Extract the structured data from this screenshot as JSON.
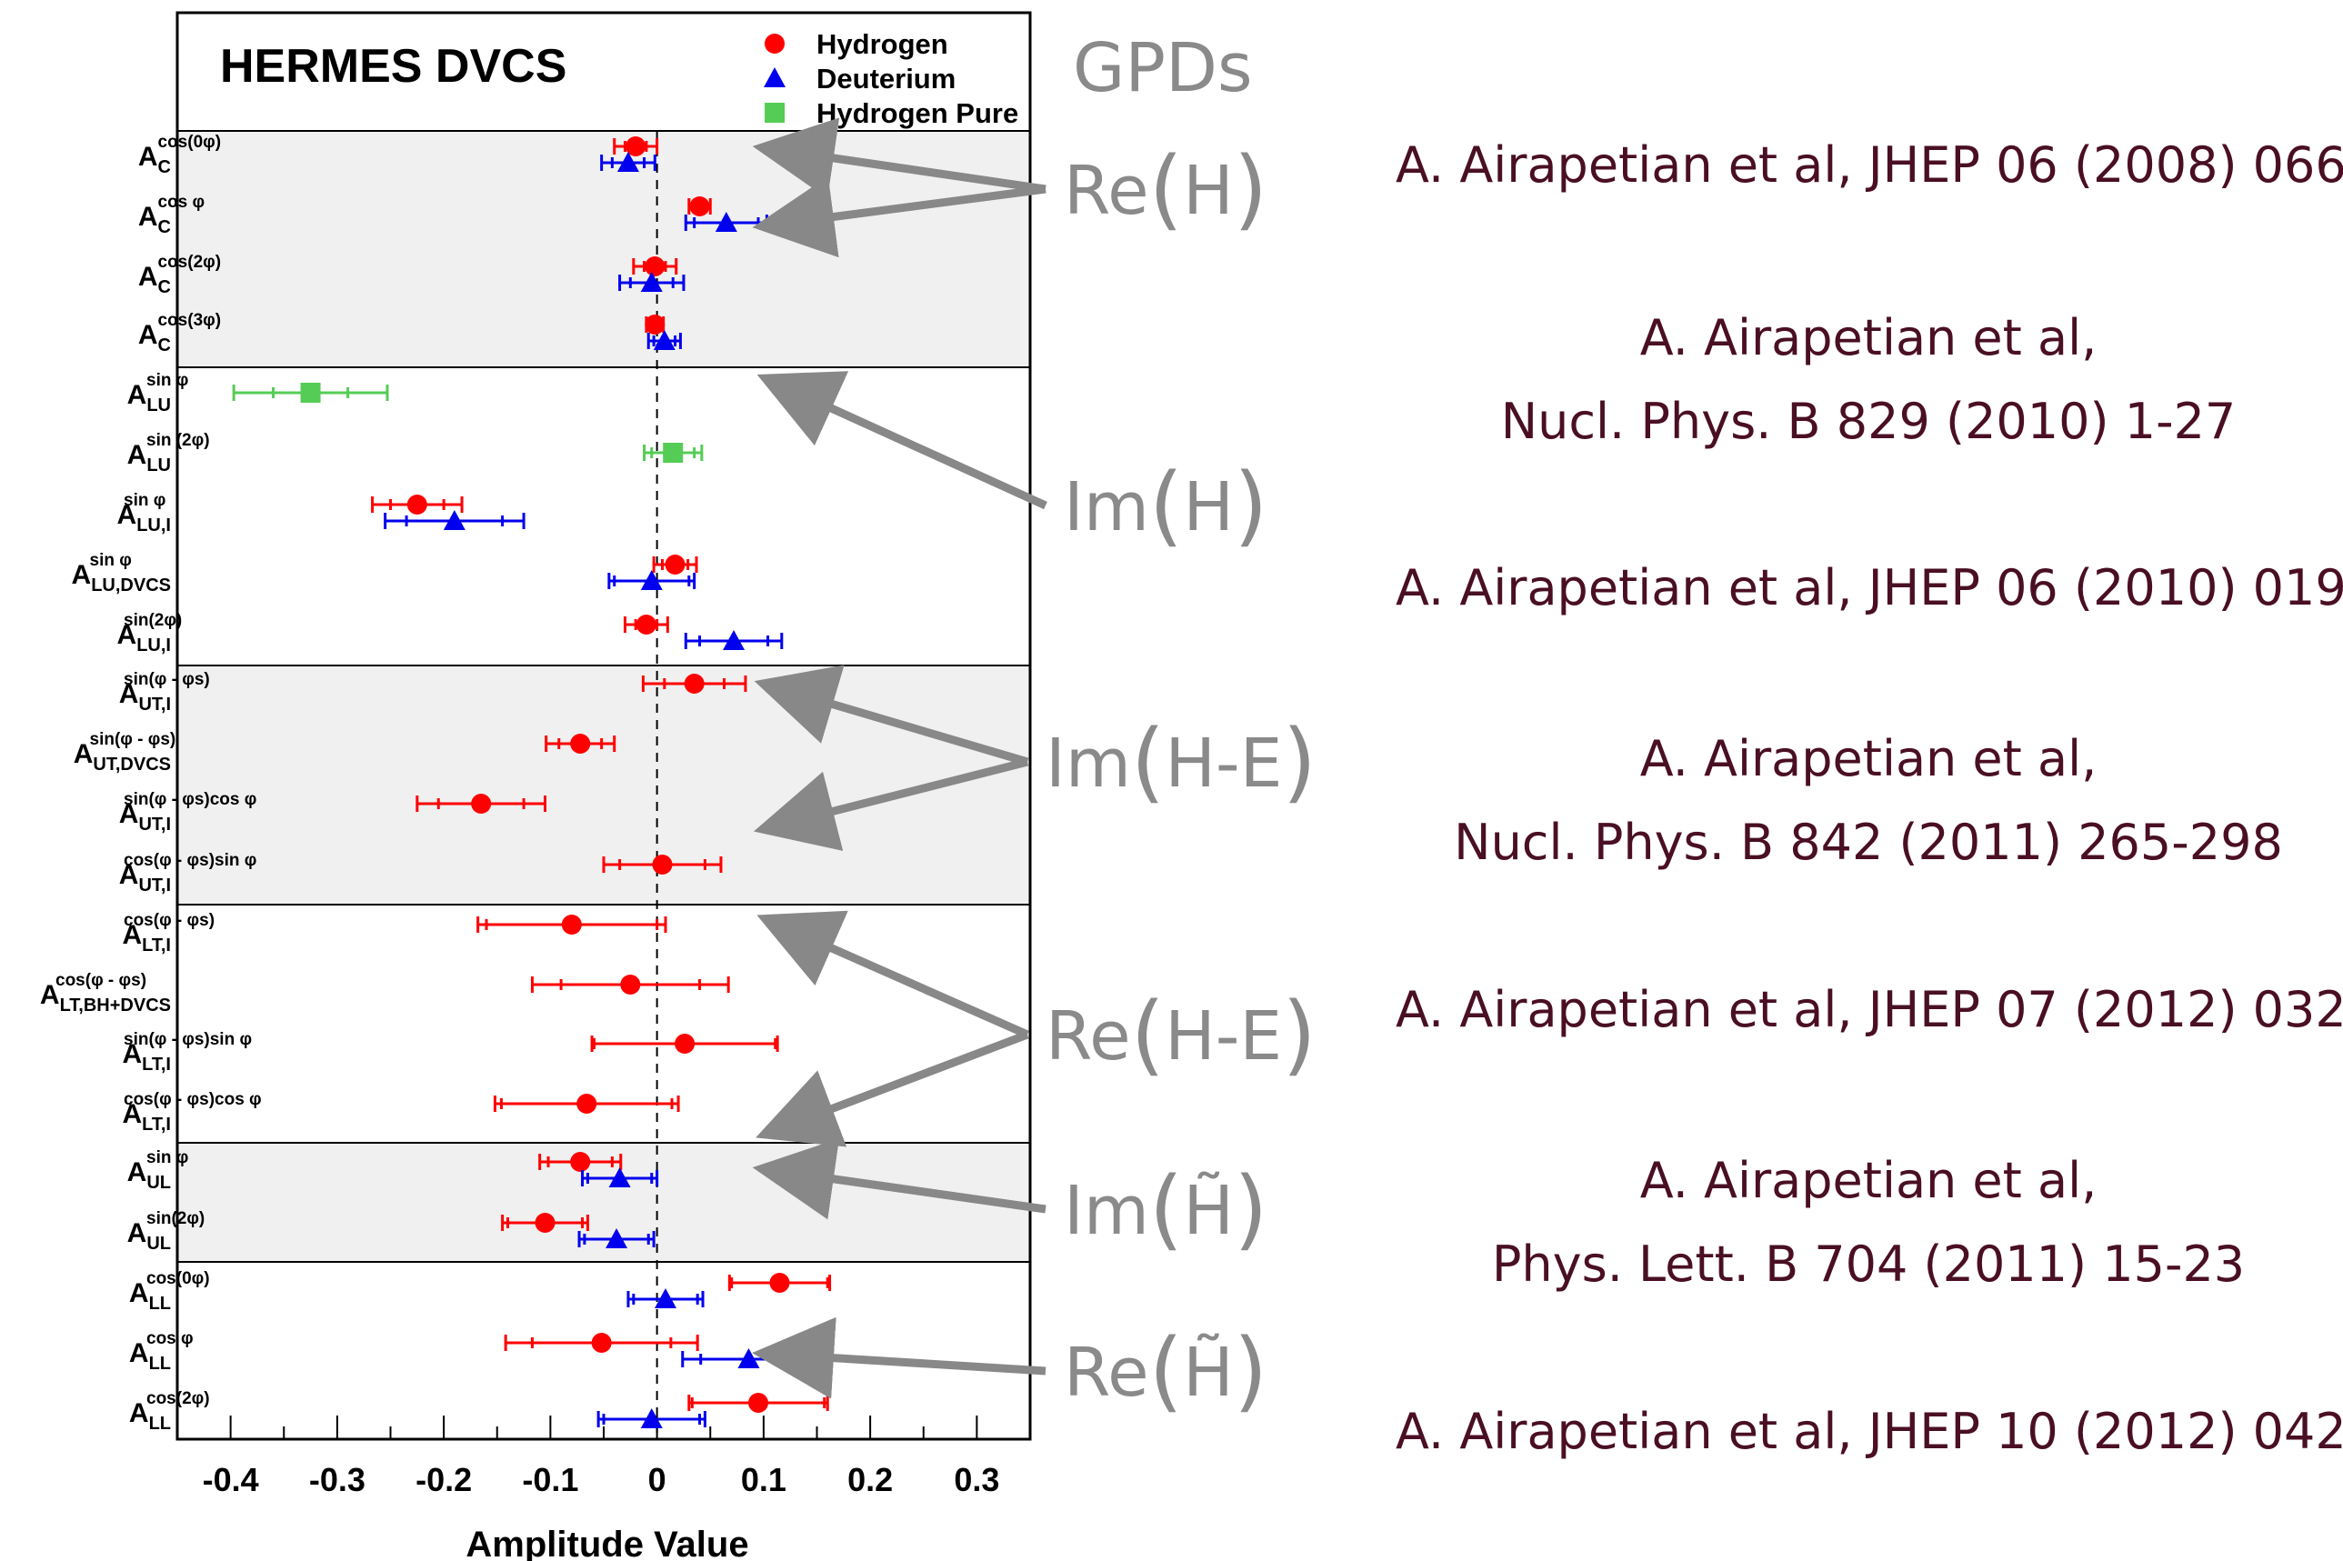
{
  "chart_data": {
    "type": "scatter",
    "title": "HERMES DVCS",
    "xlabel": "Amplitude Value",
    "xlim": [
      -0.45,
      0.35
    ],
    "xticks": [
      "-0.4",
      "-0.3",
      "-0.2",
      "-0.1",
      "0",
      "0.1",
      "0.2",
      "0.3"
    ],
    "legend": {
      "position": "top-right",
      "entries": [
        {
          "name": "Hydrogen",
          "color": "#ff0000",
          "marker": "circle"
        },
        {
          "name": "Deuterium",
          "color": "#0000ee",
          "marker": "triangle"
        },
        {
          "name": "Hydrogen Pure",
          "color": "#55cc55",
          "marker": "square"
        }
      ]
    },
    "rows": [
      {
        "base": "A",
        "sub": "C",
        "sup": "cos(0φ)"
      },
      {
        "base": "A",
        "sub": "C",
        "sup": "cos φ"
      },
      {
        "base": "A",
        "sub": "C",
        "sup": "cos(2φ)"
      },
      {
        "base": "A",
        "sub": "C",
        "sup": "cos(3φ)"
      },
      {
        "base": "A",
        "sub": "LU",
        "sup": "sin φ"
      },
      {
        "base": "A",
        "sub": "LU",
        "sup": "sin (2φ)"
      },
      {
        "base": "A",
        "sub": "LU,I",
        "sup": "sin φ"
      },
      {
        "base": "A",
        "sub": "LU,DVCS",
        "sup": "sin φ"
      },
      {
        "base": "A",
        "sub": "LU,I",
        "sup": "sin(2φ)"
      },
      {
        "base": "A",
        "sub": "UT,I",
        "sup": "sin(φ - φs)"
      },
      {
        "base": "A",
        "sub": "UT,DVCS",
        "sup": "sin(φ - φs)"
      },
      {
        "base": "A",
        "sub": "UT,I",
        "sup": "sin(φ - φs)cos φ"
      },
      {
        "base": "A",
        "sub": "UT,I",
        "sup": "cos(φ - φs)sin φ"
      },
      {
        "base": "A",
        "sub": "LT,I",
        "sup": "cos(φ - φs)"
      },
      {
        "base": "A",
        "sub": "LT,BH+DVCS",
        "sup": "cos(φ - φs)"
      },
      {
        "base": "A",
        "sub": "LT,I",
        "sup": "sin(φ - φs)sin φ"
      },
      {
        "base": "A",
        "sub": "LT,I",
        "sup": "cos(φ - φs)cos φ"
      },
      {
        "base": "A",
        "sub": "UL",
        "sup": "sin φ"
      },
      {
        "base": "A",
        "sub": "UL",
        "sup": "sin(2φ)"
      },
      {
        "base": "A",
        "sub": "LL",
        "sup": "cos(0φ)"
      },
      {
        "base": "A",
        "sub": "LL",
        "sup": "cos φ"
      },
      {
        "base": "A",
        "sub": "LL",
        "sup": "cos(2φ)"
      }
    ],
    "groups": [
      [
        0,
        3
      ],
      [
        4,
        8
      ],
      [
        9,
        12
      ],
      [
        13,
        16
      ],
      [
        17,
        18
      ],
      [
        19,
        21
      ]
    ],
    "shaded_groups": [
      0,
      2,
      4
    ],
    "series": [
      {
        "name": "Hydrogen",
        "color": "#ff0000",
        "marker": "circle",
        "points": [
          {
            "row": 0,
            "y": -0.02,
            "stat": 0.01,
            "tot": 0.02
          },
          {
            "row": 1,
            "y": 0.04,
            "stat": 0.005,
            "tot": 0.01
          },
          {
            "row": 2,
            "y": -0.002,
            "stat": 0.01,
            "tot": 0.02
          },
          {
            "row": 3,
            "y": -0.002,
            "stat": 0.005,
            "tot": 0.008
          },
          {
            "row": 6,
            "y": -0.225,
            "stat": 0.025,
            "tot": 0.042
          },
          {
            "row": 7,
            "y": 0.017,
            "stat": 0.012,
            "tot": 0.02
          },
          {
            "row": 8,
            "y": -0.01,
            "stat": 0.01,
            "tot": 0.02
          },
          {
            "row": 9,
            "y": 0.035,
            "stat": 0.028,
            "tot": 0.048
          },
          {
            "row": 10,
            "y": -0.072,
            "stat": 0.02,
            "tot": 0.032
          },
          {
            "row": 11,
            "y": -0.165,
            "stat": 0.04,
            "tot": 0.06
          },
          {
            "row": 12,
            "y": 0.005,
            "stat": 0.04,
            "tot": 0.055
          },
          {
            "row": 13,
            "y": -0.08,
            "stat": 0.08,
            "tot": 0.088
          },
          {
            "row": 14,
            "y": -0.025,
            "stat": 0.065,
            "tot": 0.092
          },
          {
            "row": 15,
            "y": 0.026,
            "stat": 0.085,
            "tot": 0.087
          },
          {
            "row": 16,
            "y": -0.066,
            "stat": 0.08,
            "tot": 0.086
          },
          {
            "row": 17,
            "y": -0.072,
            "stat": 0.03,
            "tot": 0.038
          },
          {
            "row": 18,
            "y": -0.105,
            "stat": 0.035,
            "tot": 0.04
          },
          {
            "row": 19,
            "y": 0.115,
            "stat": 0.045,
            "tot": 0.047
          },
          {
            "row": 20,
            "y": -0.052,
            "stat": 0.065,
            "tot": 0.09
          },
          {
            "row": 21,
            "y": 0.095,
            "stat": 0.062,
            "tot": 0.065
          }
        ]
      },
      {
        "name": "Deuterium",
        "color": "#0000ee",
        "marker": "triangle",
        "points": [
          {
            "row": 0,
            "y": -0.027,
            "stat": 0.015,
            "tot": 0.025
          },
          {
            "row": 1,
            "y": 0.065,
            "stat": 0.03,
            "tot": 0.038
          },
          {
            "row": 2,
            "y": -0.005,
            "stat": 0.02,
            "tot": 0.03
          },
          {
            "row": 3,
            "y": 0.007,
            "stat": 0.01,
            "tot": 0.015
          },
          {
            "row": 6,
            "y": -0.19,
            "stat": 0.045,
            "tot": 0.065
          },
          {
            "row": 7,
            "y": -0.005,
            "stat": 0.035,
            "tot": 0.04
          },
          {
            "row": 8,
            "y": 0.072,
            "stat": 0.032,
            "tot": 0.045
          },
          {
            "row": 17,
            "y": -0.035,
            "stat": 0.03,
            "tot": 0.035
          },
          {
            "row": 18,
            "y": -0.038,
            "stat": 0.03,
            "tot": 0.035
          },
          {
            "row": 19,
            "y": 0.008,
            "stat": 0.03,
            "tot": 0.035
          },
          {
            "row": 20,
            "y": 0.086,
            "stat": 0.045,
            "tot": 0.062
          },
          {
            "row": 21,
            "y": -0.005,
            "stat": 0.045,
            "tot": 0.05
          }
        ]
      },
      {
        "name": "Hydrogen Pure",
        "color": "#55cc55",
        "marker": "square",
        "points": [
          {
            "row": 4,
            "y": -0.325,
            "stat": 0.035,
            "tot": 0.072
          },
          {
            "row": 5,
            "y": 0.015,
            "stat": 0.02,
            "tot": 0.027
          }
        ]
      }
    ]
  },
  "gpd_header": "GPDs",
  "gpd_labels": [
    {
      "pre": "Re",
      "inner": "H",
      "tilde": false,
      "rows": [
        0,
        1
      ]
    },
    {
      "pre": "Im",
      "inner": "H",
      "tilde": false,
      "rows": [
        4
      ]
    },
    {
      "pre": "Im",
      "inner": "H-E",
      "tilde": false,
      "rows": [
        9,
        11
      ]
    },
    {
      "pre": "Re",
      "inner": "H-E",
      "tilde": false,
      "rows": [
        13,
        16
      ]
    },
    {
      "pre": "Im",
      "inner": "H",
      "tilde": true,
      "rows": [
        17
      ]
    },
    {
      "pre": "Re",
      "inner": "H",
      "tilde": true,
      "rows": [
        20
      ]
    }
  ],
  "references": [
    {
      "lines": [
        "A. Airapetian et al, JHEP 06 (2008) 066"
      ]
    },
    {
      "lines": [
        "A. Airapetian et al,",
        "Nucl. Phys. B 829 (2010) 1-27"
      ]
    },
    {
      "lines": [
        "A. Airapetian et al, JHEP 06 (2010) 019"
      ]
    },
    {
      "lines": [
        "A. Airapetian et al,",
        "Nucl. Phys. B 842 (2011) 265-298"
      ]
    },
    {
      "lines": [
        "A. Airapetian et al, JHEP 07 (2012) 032"
      ]
    },
    {
      "lines": [
        "A. Airapetian et al,",
        "Phys. Lett. B 704 (2011) 15-23"
      ]
    },
    {
      "lines": [
        "A. Airapetian et al, JHEP 10 (2012) 042"
      ]
    }
  ],
  "colors": {
    "arrow": "#888888",
    "reference_text": "#4a0f24",
    "gpd_text": "#8a8a8a",
    "shade": "#f0f0f0"
  }
}
